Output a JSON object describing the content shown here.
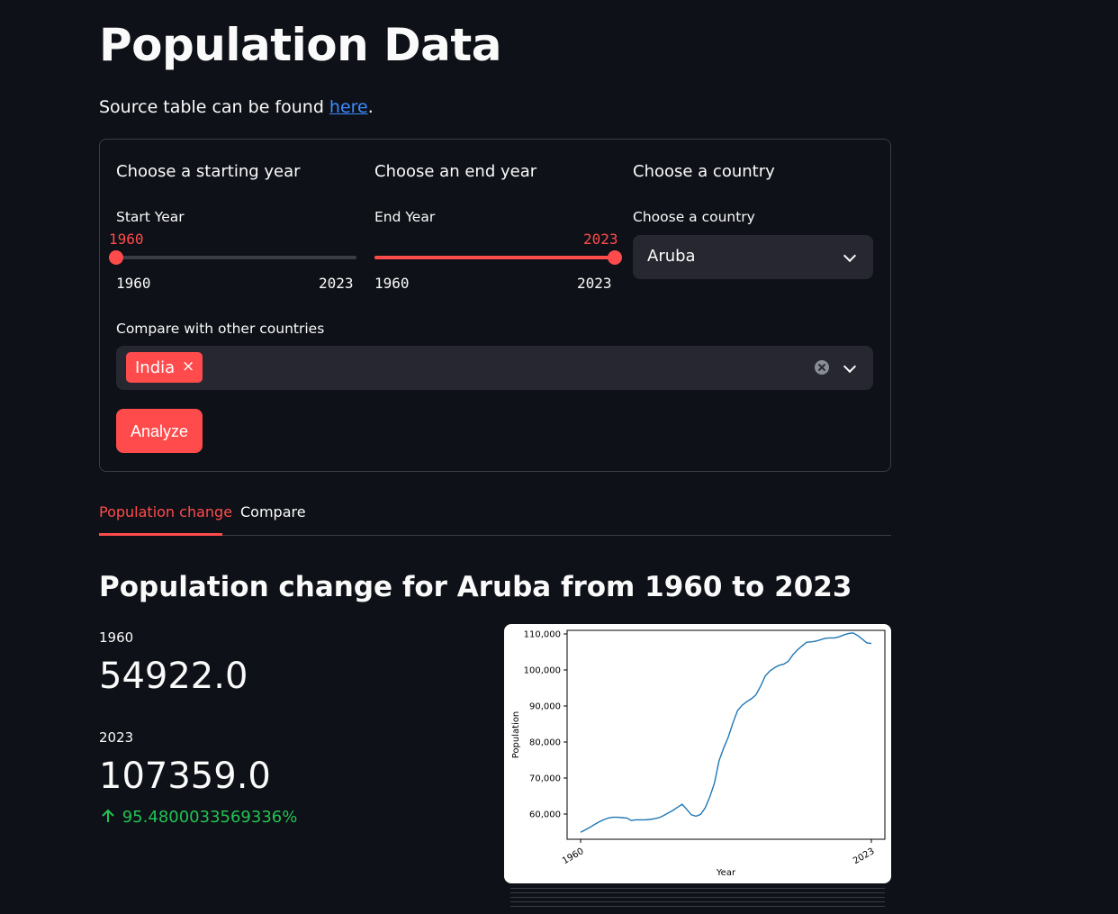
{
  "header": {
    "title": "Population Data"
  },
  "source": {
    "text": "Source table can be found ",
    "link": "here",
    "suffix": "."
  },
  "form": {
    "start_col_title": "Choose a starting year",
    "end_col_title": "Choose an end year",
    "country_col_title": "Choose a country",
    "start_slider": {
      "label": "Start Year",
      "value": "1960",
      "min": "1960",
      "max": "2023",
      "fraction": 0.0
    },
    "end_slider": {
      "label": "End Year",
      "value": "2023",
      "min": "1960",
      "max": "2023",
      "fraction": 1.0
    },
    "country_select": {
      "label": "Choose a country",
      "value": "Aruba"
    },
    "compare": {
      "label": "Compare with other countries",
      "chips": [
        "India"
      ],
      "chip_remove": "×"
    },
    "analyze_label": "Analyze"
  },
  "tabs": [
    {
      "label": "Population change",
      "active": true
    },
    {
      "label": "Compare",
      "active": false
    }
  ],
  "results": {
    "heading": "Population change for Aruba from 1960 to 2023",
    "metric_start_label": "1960",
    "metric_start_value": "54922.0",
    "metric_end_label": "2023",
    "metric_end_value": "107359.0",
    "delta": "95.4800033569336%",
    "delta_icon": "arrow-up-icon"
  },
  "colors": {
    "accent": "#ff4b4b",
    "background": "#0e1117",
    "link": "#3d8bfd",
    "delta": "#21c354",
    "line": "#1f77b4"
  },
  "chart_data": {
    "type": "line",
    "xlabel": "Year",
    "ylabel": "Population",
    "xlim": [
      1960,
      2023
    ],
    "ylim": [
      53000,
      111000
    ],
    "x_ticks": [
      "1960",
      "2023"
    ],
    "y_ticks": [
      "60,000",
      "70,000",
      "80,000",
      "90,000",
      "100,000",
      "110,000"
    ],
    "y_tick_values": [
      60000,
      70000,
      80000,
      90000,
      100000,
      110000
    ],
    "grid": false,
    "series": [
      {
        "x": [
          1960,
          1961,
          1962,
          1963,
          1964,
          1965,
          1966,
          1967,
          1968,
          1969,
          1970,
          1971,
          1972,
          1973,
          1974,
          1975,
          1976,
          1977,
          1978,
          1979,
          1980,
          1981,
          1982,
          1983,
          1984,
          1985,
          1986,
          1987,
          1988,
          1989,
          1990,
          1991,
          1992,
          1993,
          1994,
          1995,
          1996,
          1997,
          1998,
          1999,
          2000,
          2001,
          2002,
          2003,
          2004,
          2005,
          2006,
          2007,
          2008,
          2009,
          2010,
          2011,
          2012,
          2013,
          2014,
          2015,
          2016,
          2017,
          2018,
          2019,
          2020,
          2021,
          2022,
          2023
        ],
        "values": [
          54922,
          55600,
          56300,
          57100,
          57800,
          58400,
          58900,
          59100,
          59100,
          59000,
          58900,
          58200,
          58400,
          58400,
          58400,
          58500,
          58700,
          59000,
          59600,
          60300,
          61000,
          61900,
          62700,
          61300,
          59800,
          59400,
          59900,
          61700,
          64800,
          68600,
          74800,
          78300,
          81400,
          85300,
          88700,
          90200,
          91200,
          92000,
          93100,
          95500,
          98300,
          99700,
          100600,
          101300,
          101600,
          102400,
          104200,
          105600,
          106700,
          107700,
          107800,
          108000,
          108400,
          108800,
          108900,
          108900,
          109200,
          109700,
          110100,
          110300,
          109600,
          108600,
          107500,
          107359
        ]
      }
    ]
  }
}
